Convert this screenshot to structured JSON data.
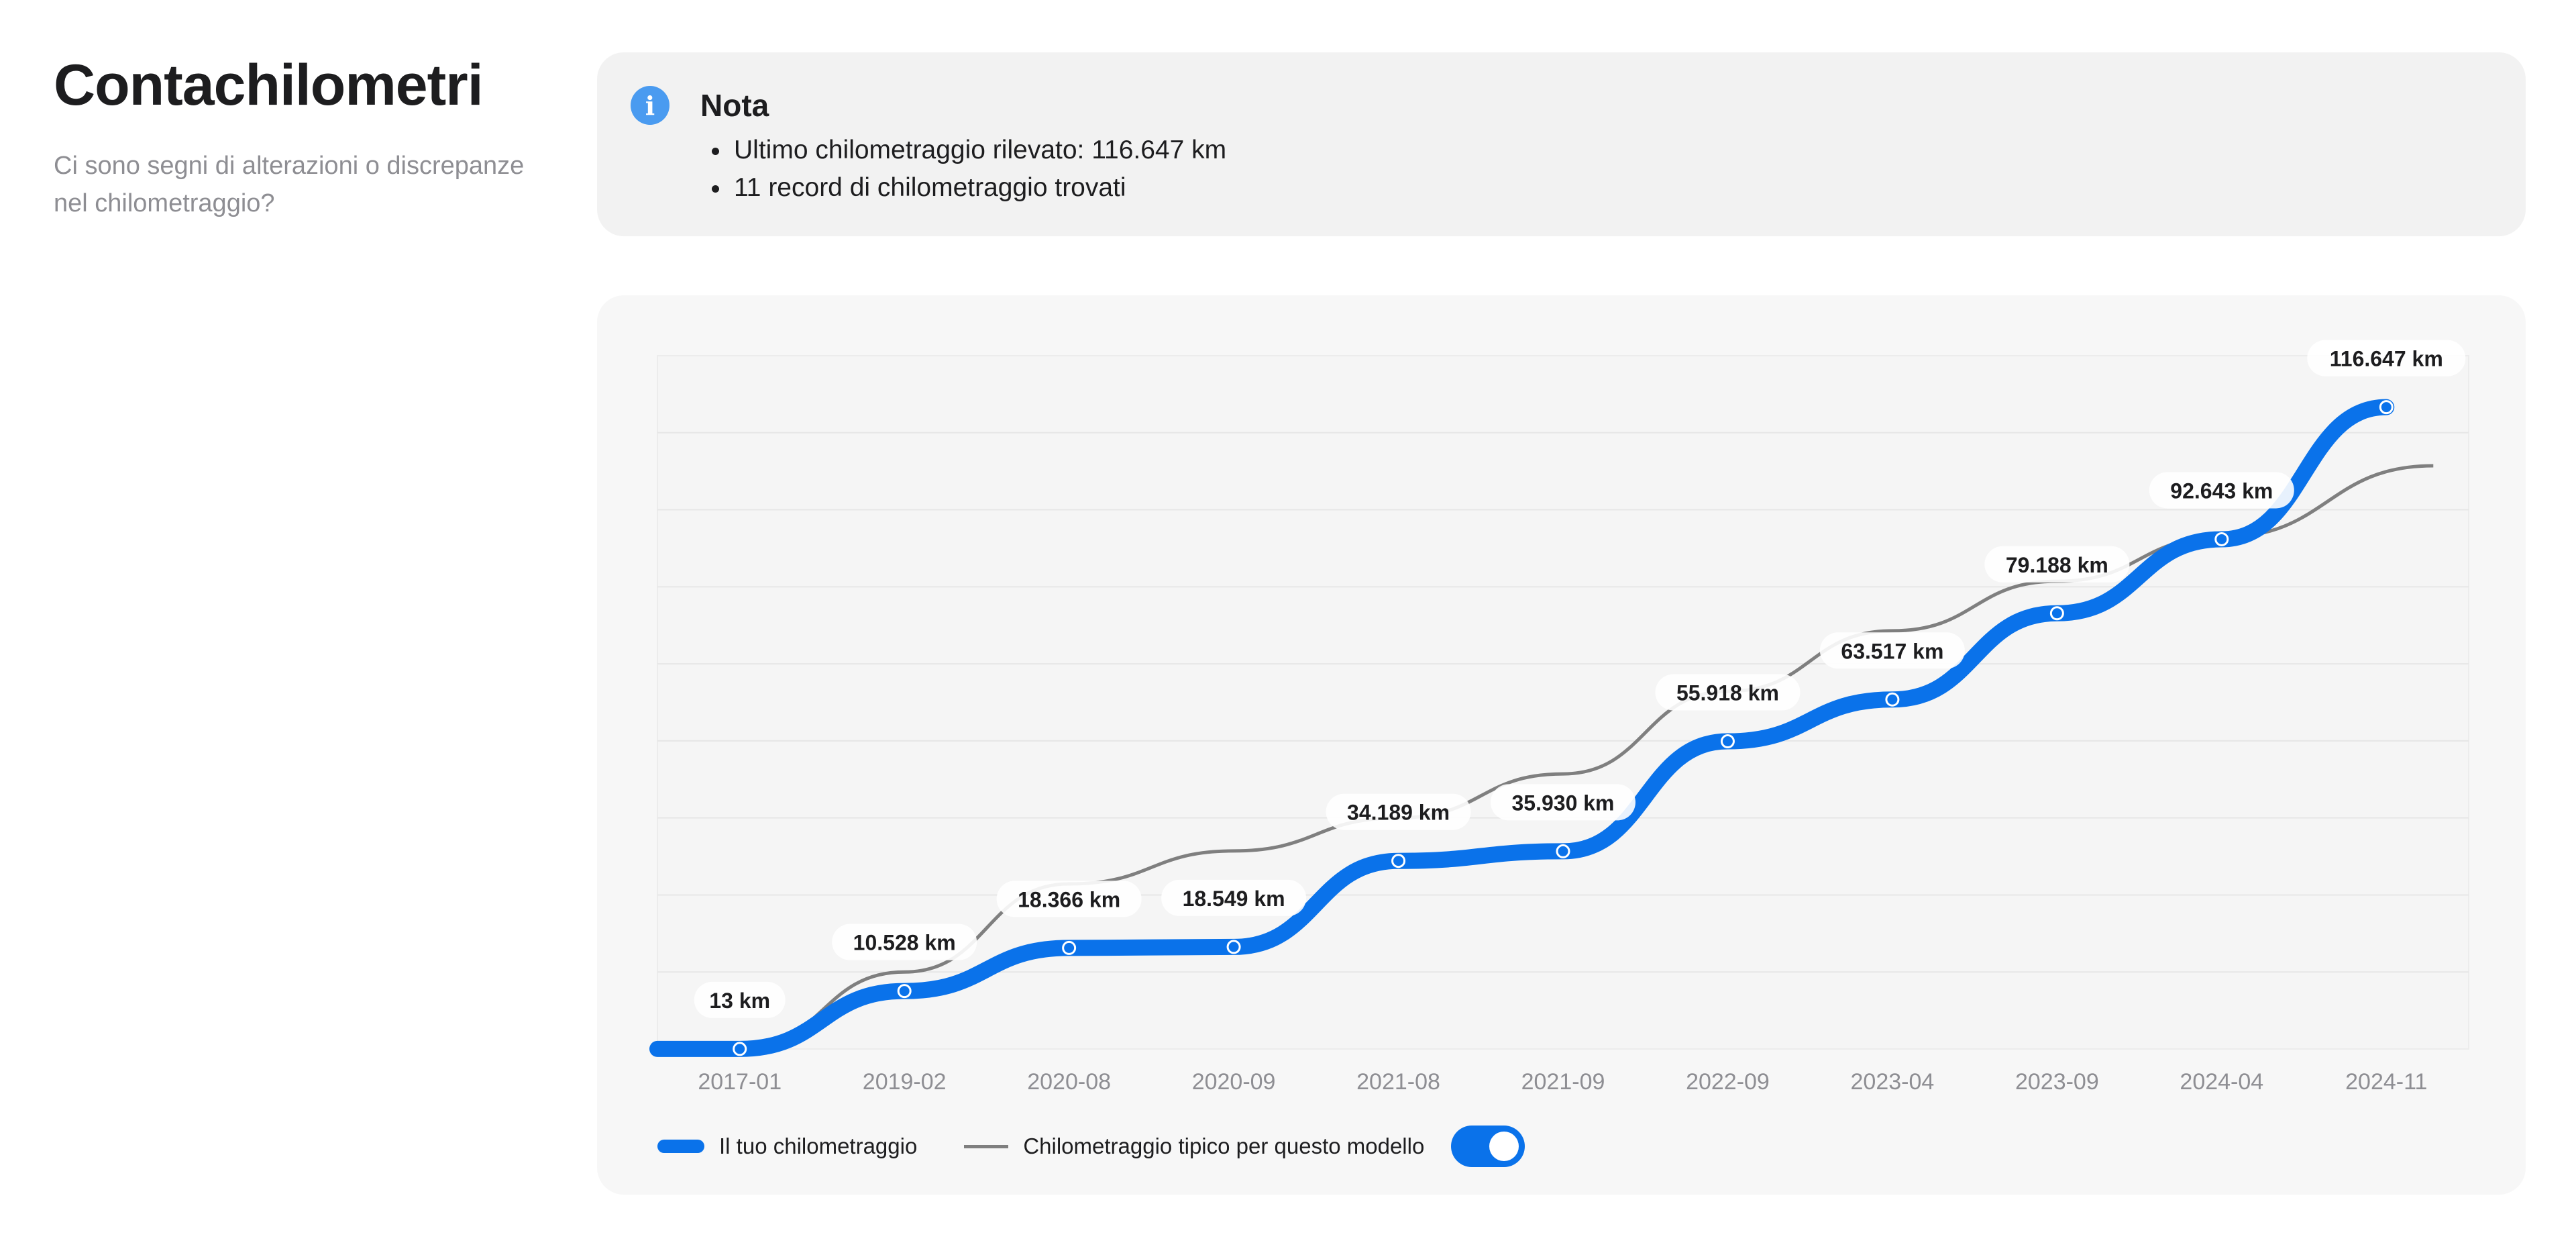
{
  "header": {
    "title": "Contachilometri",
    "subtitle": "Ci sono segni di alterazioni o discrepanze nel chilometraggio?"
  },
  "note": {
    "icon": "info-icon",
    "title": "Nota",
    "items": [
      "Ultimo chilometraggio rilevato: 116.647 km",
      "11 record di chilometraggio trovati"
    ]
  },
  "legend": {
    "own_label": "Il tuo chilometraggio",
    "typical_label": "Chilometraggio tipico per questo modello",
    "typical_toggle_on": true
  },
  "colors": {
    "accent": "#0a72ea",
    "typical_line": "#7f7f7f",
    "info_icon": "#4a9bf0"
  },
  "chart_data": {
    "type": "line",
    "categories": [
      "2017-01",
      "2019-02",
      "2020-08",
      "2020-09",
      "2021-08",
      "2021-09",
      "2022-09",
      "2023-04",
      "2023-09",
      "2024-04",
      "2024-11"
    ],
    "series": [
      {
        "name": "Il tuo chilometraggio",
        "values": [
          13,
          10528,
          18366,
          18549,
          34189,
          35930,
          55918,
          63517,
          79188,
          92643,
          116647
        ],
        "data_labels": [
          "13 km",
          "10.528 km",
          "18.366 km",
          "18.549 km",
          "34.189 km",
          "35.930 km",
          "55.918 km",
          "63.517 km",
          "79.188 km",
          "92.643 km",
          "116.647 km"
        ]
      },
      {
        "name": "Chilometraggio tipico per questo modello",
        "values": [
          0,
          14000,
          30000,
          36000,
          42000,
          50000,
          65000,
          76000,
          85000,
          93000,
          106000
        ]
      }
    ],
    "ylim": [
      0,
      126000
    ],
    "grid": true,
    "legend_position": "bottom-left"
  }
}
